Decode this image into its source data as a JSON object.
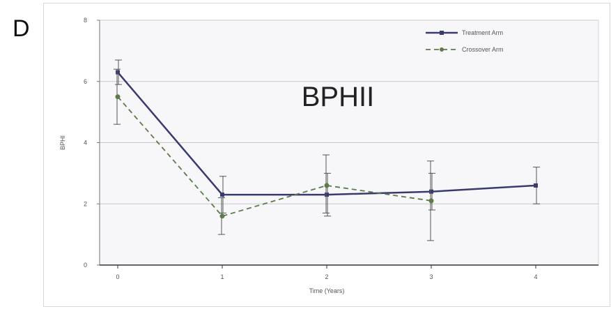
{
  "panel_letter": "D",
  "chart_data": {
    "type": "line",
    "annotation": "BPHII",
    "xlabel": "Time (Years)",
    "ylabel": "BPHI",
    "x": [
      0,
      1,
      2,
      3,
      4
    ],
    "xticks": [
      "0",
      "1",
      "2",
      "3",
      "4"
    ],
    "yticks": [
      "0",
      "2",
      "4",
      "6",
      "8"
    ],
    "xlim": [
      0,
      4
    ],
    "ylim": [
      0,
      8
    ],
    "grid": "horizontal",
    "legend_position": "top-right",
    "series": [
      {
        "name": "Treatment Arm",
        "style": "solid",
        "color": "#3a3a6e",
        "values": [
          6.3,
          2.3,
          2.3,
          2.4,
          2.6
        ],
        "err_low": [
          5.9,
          1.7,
          1.6,
          1.8,
          2.0
        ],
        "err_high": [
          6.7,
          2.9,
          3.0,
          3.0,
          3.2
        ]
      },
      {
        "name": "Crossover Arm",
        "style": "dashed",
        "color": "#5d7a4a",
        "values": [
          5.5,
          1.6,
          2.6,
          2.1,
          null
        ],
        "err_low": [
          4.6,
          1.0,
          1.7,
          0.8,
          null
        ],
        "err_high": [
          6.4,
          2.2,
          3.6,
          3.4,
          null
        ]
      }
    ]
  }
}
